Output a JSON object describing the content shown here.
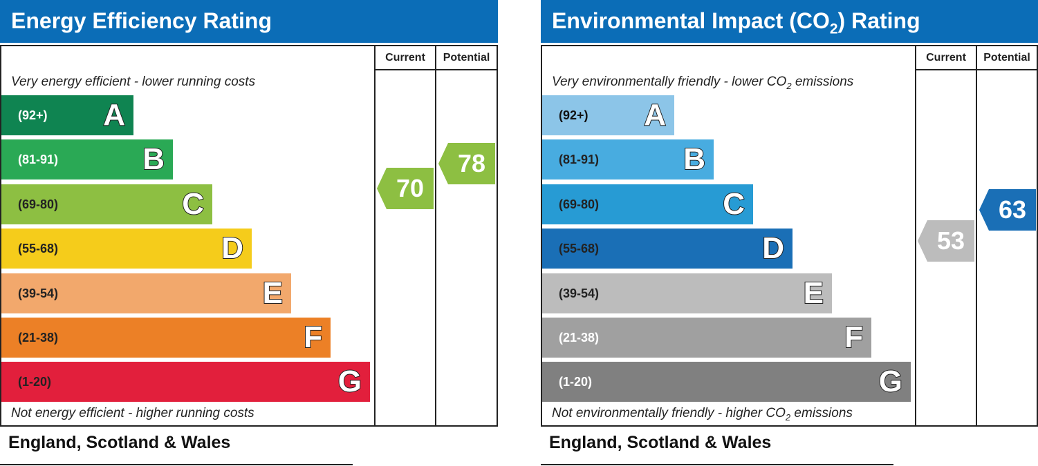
{
  "chart_data": [
    {
      "type": "bar",
      "title": "Energy Efficiency Rating",
      "columns": [
        "Current",
        "Potential"
      ],
      "top_caption": "Very energy efficient - lower running costs",
      "bottom_caption": "Not energy efficient - higher running costs",
      "region": "England, Scotland & Wales",
      "bands": [
        {
          "letter": "A",
          "range": "(92+)",
          "min": 92,
          "max": 100,
          "color": "#0f8451",
          "text_color": "#ffffff"
        },
        {
          "letter": "B",
          "range": "(81-91)",
          "min": 81,
          "max": 91,
          "color": "#2aa955",
          "text_color": "#ffffff"
        },
        {
          "letter": "C",
          "range": "(69-80)",
          "min": 69,
          "max": 80,
          "color": "#8dbf42",
          "text_color": "#222222"
        },
        {
          "letter": "D",
          "range": "(55-68)",
          "min": 55,
          "max": 68,
          "color": "#f5cc1b",
          "text_color": "#222222"
        },
        {
          "letter": "E",
          "range": "(39-54)",
          "min": 39,
          "max": 54,
          "color": "#f2a86c",
          "text_color": "#222222"
        },
        {
          "letter": "F",
          "range": "(21-38)",
          "min": 21,
          "max": 38,
          "color": "#ec8026",
          "text_color": "#222222"
        },
        {
          "letter": "G",
          "range": "(1-20)",
          "min": 1,
          "max": 20,
          "color": "#e21f3c",
          "text_color": "#222222"
        }
      ],
      "current": {
        "value": 70,
        "band": "C",
        "color": "#8dbf42"
      },
      "potential": {
        "value": 78,
        "band": "C",
        "color": "#8dbf42"
      }
    },
    {
      "type": "bar",
      "title_parts": [
        "Environmental Impact (CO",
        "2",
        ") Rating"
      ],
      "columns": [
        "Current",
        "Potential"
      ],
      "top_caption_parts": [
        "Very environmentally friendly - lower CO",
        "2",
        " emissions"
      ],
      "bottom_caption_parts": [
        "Not environmentally friendly - higher CO",
        "2",
        " emissions"
      ],
      "region": "England, Scotland & Wales",
      "bands": [
        {
          "letter": "A",
          "range": "(92+)",
          "min": 92,
          "max": 100,
          "color": "#8cc5e8",
          "text_color": "#111111"
        },
        {
          "letter": "B",
          "range": "(81-91)",
          "min": 81,
          "max": 91,
          "color": "#48ace0",
          "text_color": "#222222"
        },
        {
          "letter": "C",
          "range": "(69-80)",
          "min": 69,
          "max": 80,
          "color": "#279bd4",
          "text_color": "#222222"
        },
        {
          "letter": "D",
          "range": "(55-68)",
          "min": 55,
          "max": 68,
          "color": "#1a6fb6",
          "text_color": "#222222"
        },
        {
          "letter": "E",
          "range": "(39-54)",
          "min": 39,
          "max": 54,
          "color": "#bcbcbc",
          "text_color": "#222222"
        },
        {
          "letter": "F",
          "range": "(21-38)",
          "min": 21,
          "max": 38,
          "color": "#a0a0a0",
          "text_color": "#ffffff"
        },
        {
          "letter": "G",
          "range": "(1-20)",
          "min": 1,
          "max": 20,
          "color": "#808080",
          "text_color": "#ffffff"
        }
      ],
      "current": {
        "value": 53,
        "band": "E",
        "color": "#bcbcbc"
      },
      "potential": {
        "value": 63,
        "band": "D",
        "color": "#1a6fb6"
      }
    }
  ]
}
